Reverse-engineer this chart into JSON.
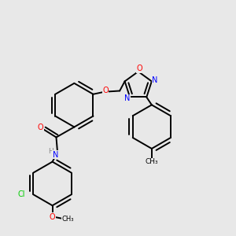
{
  "bg_color": "#e8e8e8",
  "bond_color": "#000000",
  "atom_colors": {
    "O": "#ff0000",
    "N": "#0000ff",
    "Cl": "#00cc00",
    "C": "#000000",
    "H": "#888888"
  },
  "lw": 1.4,
  "r_hex": 0.085,
  "r_pent": 0.055
}
